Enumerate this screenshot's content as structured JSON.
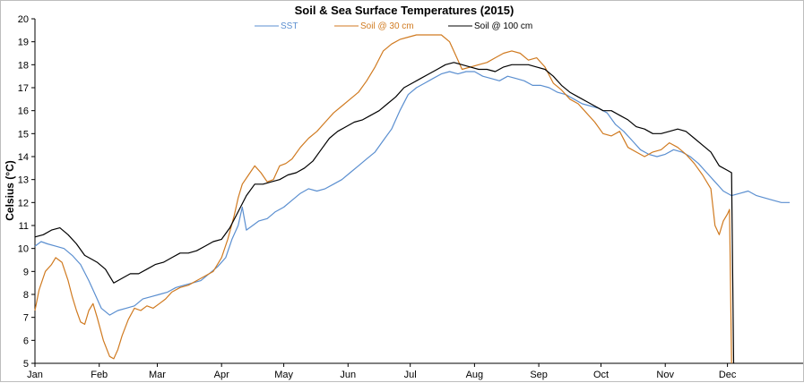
{
  "chart_data": {
    "type": "line",
    "title": "Soil & Sea Surface Temperatures (2015)",
    "xlabel": "",
    "ylabel": "Celsius (°C)",
    "ylim": [
      5,
      20
    ],
    "yticks": [
      5,
      6,
      7,
      8,
      9,
      10,
      11,
      12,
      13,
      14,
      15,
      16,
      17,
      18,
      19,
      20
    ],
    "xlim": [
      0,
      364
    ],
    "x_unit": "day of year 2015",
    "x_ticks": [
      {
        "label": "Jan",
        "day": 0
      },
      {
        "label": "Feb",
        "day": 31
      },
      {
        "label": "Mar",
        "day": 59
      },
      {
        "label": "Apr",
        "day": 90
      },
      {
        "label": "May",
        "day": 120
      },
      {
        "label": "Jun",
        "day": 151
      },
      {
        "label": "Jul",
        "day": 181
      },
      {
        "label": "Aug",
        "day": 212
      },
      {
        "label": "Sep",
        "day": 243
      },
      {
        "label": "Oct",
        "day": 273
      },
      {
        "label": "Nov",
        "day": 304
      },
      {
        "label": "Dec",
        "day": 334
      }
    ],
    "grid": false,
    "legend_position": "top-center",
    "series": [
      {
        "name": "SST",
        "color": "#5b8fd0",
        "points": [
          [
            0,
            10.1
          ],
          [
            3,
            10.3
          ],
          [
            6,
            10.2
          ],
          [
            10,
            10.1
          ],
          [
            14,
            10.0
          ],
          [
            18,
            9.7
          ],
          [
            22,
            9.3
          ],
          [
            26,
            8.6
          ],
          [
            29,
            8.0
          ],
          [
            32,
            7.4
          ],
          [
            36,
            7.1
          ],
          [
            40,
            7.3
          ],
          [
            44,
            7.4
          ],
          [
            48,
            7.5
          ],
          [
            52,
            7.8
          ],
          [
            56,
            7.9
          ],
          [
            60,
            8.0
          ],
          [
            64,
            8.1
          ],
          [
            68,
            8.3
          ],
          [
            72,
            8.4
          ],
          [
            76,
            8.5
          ],
          [
            80,
            8.6
          ],
          [
            84,
            8.9
          ],
          [
            88,
            9.2
          ],
          [
            92,
            9.6
          ],
          [
            95,
            10.4
          ],
          [
            98,
            11.0
          ],
          [
            100,
            11.8
          ],
          [
            102,
            10.8
          ],
          [
            105,
            11.0
          ],
          [
            108,
            11.2
          ],
          [
            112,
            11.3
          ],
          [
            116,
            11.6
          ],
          [
            120,
            11.8
          ],
          [
            124,
            12.1
          ],
          [
            128,
            12.4
          ],
          [
            132,
            12.6
          ],
          [
            136,
            12.5
          ],
          [
            140,
            12.6
          ],
          [
            144,
            12.8
          ],
          [
            148,
            13.0
          ],
          [
            152,
            13.3
          ],
          [
            156,
            13.6
          ],
          [
            160,
            13.9
          ],
          [
            164,
            14.2
          ],
          [
            168,
            14.7
          ],
          [
            172,
            15.2
          ],
          [
            176,
            16.0
          ],
          [
            180,
            16.7
          ],
          [
            184,
            17.0
          ],
          [
            188,
            17.2
          ],
          [
            192,
            17.4
          ],
          [
            196,
            17.6
          ],
          [
            200,
            17.7
          ],
          [
            204,
            17.6
          ],
          [
            208,
            17.7
          ],
          [
            212,
            17.7
          ],
          [
            216,
            17.5
          ],
          [
            220,
            17.4
          ],
          [
            224,
            17.3
          ],
          [
            228,
            17.5
          ],
          [
            232,
            17.4
          ],
          [
            236,
            17.3
          ],
          [
            240,
            17.1
          ],
          [
            244,
            17.1
          ],
          [
            248,
            17.0
          ],
          [
            252,
            16.8
          ],
          [
            256,
            16.7
          ],
          [
            260,
            16.5
          ],
          [
            264,
            16.3
          ],
          [
            268,
            16.2
          ],
          [
            272,
            16.1
          ],
          [
            276,
            15.9
          ],
          [
            280,
            15.4
          ],
          [
            284,
            15.1
          ],
          [
            288,
            14.7
          ],
          [
            292,
            14.3
          ],
          [
            296,
            14.1
          ],
          [
            300,
            14.0
          ],
          [
            304,
            14.1
          ],
          [
            308,
            14.3
          ],
          [
            312,
            14.2
          ],
          [
            316,
            14.0
          ],
          [
            320,
            13.7
          ],
          [
            324,
            13.3
          ],
          [
            328,
            12.9
          ],
          [
            332,
            12.5
          ],
          [
            336,
            12.3
          ],
          [
            340,
            12.4
          ],
          [
            344,
            12.5
          ],
          [
            348,
            12.3
          ],
          [
            352,
            12.2
          ],
          [
            356,
            12.1
          ],
          [
            360,
            12.0
          ],
          [
            364,
            12.0
          ]
        ]
      },
      {
        "name": "Soil @ 30 cm",
        "color": "#d07a20",
        "points": [
          [
            0,
            7.3
          ],
          [
            2,
            8.2
          ],
          [
            5,
            9.0
          ],
          [
            8,
            9.3
          ],
          [
            10,
            9.6
          ],
          [
            13,
            9.4
          ],
          [
            16,
            8.6
          ],
          [
            18,
            7.9
          ],
          [
            20,
            7.3
          ],
          [
            22,
            6.8
          ],
          [
            24,
            6.7
          ],
          [
            26,
            7.3
          ],
          [
            28,
            7.6
          ],
          [
            30,
            7.0
          ],
          [
            33,
            6.0
          ],
          [
            36,
            5.3
          ],
          [
            38,
            5.2
          ],
          [
            40,
            5.6
          ],
          [
            42,
            6.2
          ],
          [
            45,
            6.9
          ],
          [
            48,
            7.4
          ],
          [
            51,
            7.3
          ],
          [
            54,
            7.5
          ],
          [
            57,
            7.4
          ],
          [
            60,
            7.6
          ],
          [
            63,
            7.8
          ],
          [
            66,
            8.1
          ],
          [
            70,
            8.3
          ],
          [
            74,
            8.4
          ],
          [
            78,
            8.6
          ],
          [
            82,
            8.8
          ],
          [
            86,
            9.0
          ],
          [
            90,
            9.6
          ],
          [
            93,
            10.4
          ],
          [
            96,
            11.4
          ],
          [
            98,
            12.2
          ],
          [
            100,
            12.8
          ],
          [
            103,
            13.2
          ],
          [
            106,
            13.6
          ],
          [
            109,
            13.3
          ],
          [
            112,
            12.9
          ],
          [
            115,
            13.0
          ],
          [
            118,
            13.6
          ],
          [
            121,
            13.7
          ],
          [
            124,
            13.9
          ],
          [
            128,
            14.4
          ],
          [
            132,
            14.8
          ],
          [
            136,
            15.1
          ],
          [
            140,
            15.5
          ],
          [
            144,
            15.9
          ],
          [
            148,
            16.2
          ],
          [
            152,
            16.5
          ],
          [
            156,
            16.8
          ],
          [
            160,
            17.3
          ],
          [
            164,
            17.9
          ],
          [
            168,
            18.6
          ],
          [
            172,
            18.9
          ],
          [
            176,
            19.1
          ],
          [
            180,
            19.2
          ],
          [
            184,
            19.3
          ],
          [
            188,
            19.3
          ],
          [
            192,
            19.3
          ],
          [
            196,
            19.3
          ],
          [
            200,
            19.0
          ],
          [
            203,
            18.4
          ],
          [
            206,
            17.8
          ],
          [
            210,
            17.9
          ],
          [
            214,
            18.0
          ],
          [
            218,
            18.1
          ],
          [
            222,
            18.3
          ],
          [
            226,
            18.5
          ],
          [
            230,
            18.6
          ],
          [
            234,
            18.5
          ],
          [
            238,
            18.2
          ],
          [
            242,
            18.3
          ],
          [
            246,
            17.9
          ],
          [
            250,
            17.2
          ],
          [
            254,
            16.9
          ],
          [
            258,
            16.5
          ],
          [
            262,
            16.3
          ],
          [
            266,
            15.9
          ],
          [
            270,
            15.5
          ],
          [
            274,
            15.0
          ],
          [
            278,
            14.9
          ],
          [
            282,
            15.1
          ],
          [
            286,
            14.4
          ],
          [
            290,
            14.2
          ],
          [
            294,
            14.0
          ],
          [
            298,
            14.2
          ],
          [
            302,
            14.3
          ],
          [
            306,
            14.6
          ],
          [
            310,
            14.4
          ],
          [
            314,
            14.1
          ],
          [
            318,
            13.7
          ],
          [
            322,
            13.2
          ],
          [
            326,
            12.6
          ],
          [
            328,
            11.0
          ],
          [
            330,
            10.6
          ],
          [
            332,
            11.2
          ],
          [
            334,
            11.5
          ],
          [
            335,
            11.7
          ],
          [
            336,
            5.0
          ]
        ]
      },
      {
        "name": "Soil @ 100 cm",
        "color": "#000000",
        "points": [
          [
            0,
            10.5
          ],
          [
            4,
            10.6
          ],
          [
            8,
            10.8
          ],
          [
            12,
            10.9
          ],
          [
            16,
            10.6
          ],
          [
            20,
            10.2
          ],
          [
            24,
            9.7
          ],
          [
            28,
            9.5
          ],
          [
            30,
            9.4
          ],
          [
            34,
            9.1
          ],
          [
            38,
            8.5
          ],
          [
            42,
            8.7
          ],
          [
            46,
            8.9
          ],
          [
            50,
            8.9
          ],
          [
            54,
            9.1
          ],
          [
            58,
            9.3
          ],
          [
            62,
            9.4
          ],
          [
            66,
            9.6
          ],
          [
            70,
            9.8
          ],
          [
            74,
            9.8
          ],
          [
            78,
            9.9
          ],
          [
            82,
            10.1
          ],
          [
            86,
            10.3
          ],
          [
            90,
            10.4
          ],
          [
            94,
            10.9
          ],
          [
            98,
            11.6
          ],
          [
            102,
            12.3
          ],
          [
            106,
            12.8
          ],
          [
            110,
            12.8
          ],
          [
            114,
            12.9
          ],
          [
            118,
            13.0
          ],
          [
            122,
            13.2
          ],
          [
            126,
            13.3
          ],
          [
            130,
            13.5
          ],
          [
            134,
            13.8
          ],
          [
            138,
            14.3
          ],
          [
            142,
            14.8
          ],
          [
            146,
            15.1
          ],
          [
            150,
            15.3
          ],
          [
            154,
            15.5
          ],
          [
            158,
            15.6
          ],
          [
            162,
            15.8
          ],
          [
            166,
            16.0
          ],
          [
            170,
            16.3
          ],
          [
            174,
            16.6
          ],
          [
            178,
            17.0
          ],
          [
            182,
            17.2
          ],
          [
            186,
            17.4
          ],
          [
            190,
            17.6
          ],
          [
            194,
            17.8
          ],
          [
            198,
            18.0
          ],
          [
            202,
            18.1
          ],
          [
            206,
            18.0
          ],
          [
            210,
            17.9
          ],
          [
            214,
            17.8
          ],
          [
            218,
            17.8
          ],
          [
            222,
            17.7
          ],
          [
            226,
            17.9
          ],
          [
            230,
            18.0
          ],
          [
            234,
            18.0
          ],
          [
            238,
            18.0
          ],
          [
            242,
            17.9
          ],
          [
            246,
            17.8
          ],
          [
            250,
            17.5
          ],
          [
            254,
            17.1
          ],
          [
            258,
            16.8
          ],
          [
            262,
            16.6
          ],
          [
            266,
            16.4
          ],
          [
            270,
            16.2
          ],
          [
            274,
            16.0
          ],
          [
            278,
            16.0
          ],
          [
            282,
            15.8
          ],
          [
            286,
            15.6
          ],
          [
            290,
            15.3
          ],
          [
            294,
            15.2
          ],
          [
            298,
            15.0
          ],
          [
            302,
            15.0
          ],
          [
            306,
            15.1
          ],
          [
            310,
            15.2
          ],
          [
            314,
            15.1
          ],
          [
            318,
            14.8
          ],
          [
            322,
            14.5
          ],
          [
            326,
            14.2
          ],
          [
            330,
            13.6
          ],
          [
            334,
            13.4
          ],
          [
            336,
            13.3
          ],
          [
            337,
            5.0
          ]
        ]
      }
    ]
  }
}
